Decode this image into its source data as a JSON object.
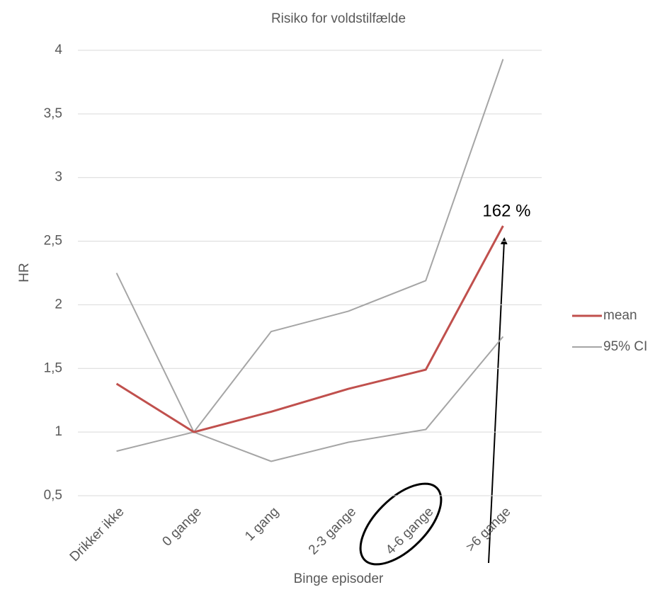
{
  "chart_data": {
    "type": "line",
    "title": "Risiko for voldstilfælde",
    "x_label": "Binge episoder",
    "y_label": "HR",
    "categories": [
      "Drikker ikke",
      "0 gange",
      "1 gang",
      "2-3 gange",
      "4-6 gange",
      ">6 gange"
    ],
    "series": [
      {
        "name": "mean",
        "color": "#c0504d",
        "width": 3,
        "values": [
          1.38,
          1.0,
          1.16,
          1.34,
          1.49,
          2.62
        ]
      },
      {
        "name": "95% CI",
        "color": "#a5a5a5",
        "width": 2,
        "values": [
          2.25,
          1.0,
          1.79,
          1.95,
          2.19,
          3.93
        ]
      },
      {
        "name": "95% CI",
        "color": "#a5a5a5",
        "width": 2,
        "values": [
          0.85,
          1.0,
          0.77,
          0.92,
          1.02,
          1.75
        ]
      }
    ],
    "ylim": [
      0.5,
      4
    ],
    "yticks": [
      {
        "value": 0.5,
        "label": "0,5"
      },
      1,
      {
        "value": 1.5,
        "label": "1,5"
      },
      2,
      {
        "value": 2.5,
        "label": "2,5"
      },
      3,
      {
        "value": 3.5,
        "label": "3,5"
      },
      4
    ],
    "grid": true,
    "legend": "right",
    "annotations": [
      "162 %"
    ]
  }
}
